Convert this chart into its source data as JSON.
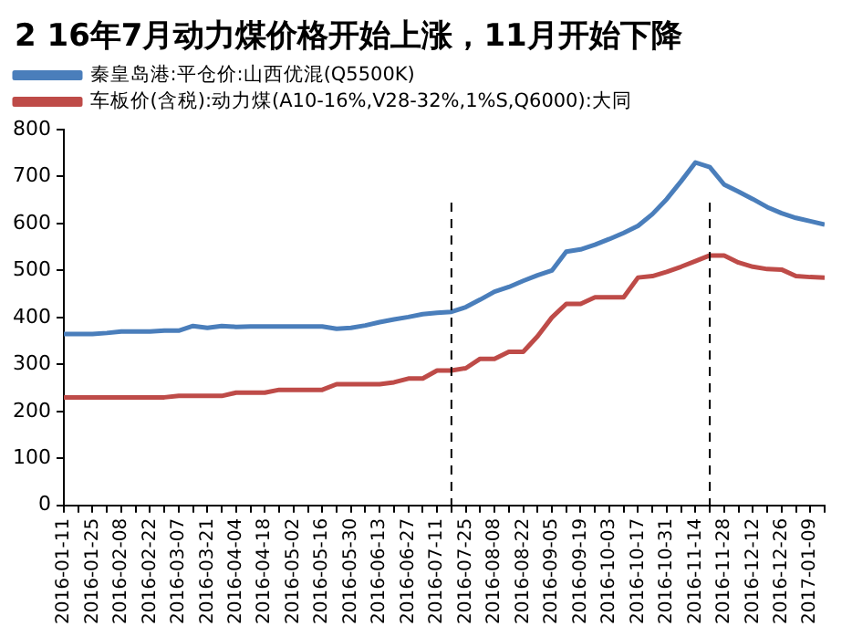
{
  "chart_data": {
    "type": "line",
    "title": "2 16年7月动力煤价格开始上涨，11月开始下降",
    "x": [
      "2016-01-11",
      "2016-01-18",
      "2016-01-25",
      "2016-02-01",
      "2016-02-08",
      "2016-02-15",
      "2016-02-22",
      "2016-02-29",
      "2016-03-07",
      "2016-03-14",
      "2016-03-21",
      "2016-03-28",
      "2016-04-04",
      "2016-04-11",
      "2016-04-18",
      "2016-04-25",
      "2016-05-02",
      "2016-05-09",
      "2016-05-16",
      "2016-05-23",
      "2016-05-30",
      "2016-06-06",
      "2016-06-13",
      "2016-06-20",
      "2016-06-27",
      "2016-07-04",
      "2016-07-11",
      "2016-07-18",
      "2016-07-25",
      "2016-08-01",
      "2016-08-08",
      "2016-08-15",
      "2016-08-22",
      "2016-08-29",
      "2016-09-05",
      "2016-09-12",
      "2016-09-19",
      "2016-09-26",
      "2016-10-03",
      "2016-10-10",
      "2016-10-17",
      "2016-10-24",
      "2016-10-31",
      "2016-11-07",
      "2016-11-14",
      "2016-11-21",
      "2016-11-28",
      "2016-12-05",
      "2016-12-12",
      "2016-12-19",
      "2016-12-26",
      "2017-01-02",
      "2017-01-09",
      "2017-01-16"
    ],
    "series": [
      {
        "name": "秦皇岛港:平仓价:山西优混(Q5500K)",
        "color": "#4a7ebb",
        "values": [
          365,
          365,
          365,
          367,
          370,
          370,
          370,
          372,
          372,
          382,
          378,
          382,
          380,
          381,
          381,
          381,
          381,
          381,
          381,
          376,
          378,
          383,
          390,
          396,
          401,
          407,
          410,
          412,
          422,
          438,
          455,
          465,
          478,
          490,
          500,
          540,
          545,
          555,
          567,
          580,
          595,
          620,
          652,
          690,
          730,
          720,
          683,
          668,
          652,
          635,
          622,
          612,
          605,
          598
        ]
      },
      {
        "name": "车板价(含税):动力煤(A10-16%,V28-32%,1%S,Q6000):大同",
        "color": "#be4b48",
        "values": [
          230,
          230,
          230,
          230,
          230,
          230,
          230,
          230,
          233,
          233,
          233,
          233,
          240,
          240,
          240,
          246,
          246,
          246,
          246,
          258,
          258,
          258,
          258,
          262,
          270,
          270,
          287,
          287,
          292,
          312,
          312,
          327,
          327,
          360,
          400,
          429,
          429,
          443,
          443,
          443,
          485,
          488,
          497,
          508,
          520,
          532,
          532,
          517,
          508,
          503,
          502,
          488,
          486,
          485
        ]
      }
    ],
    "xlim": [
      "2016-01-11",
      "2017-01-16"
    ],
    "xticks": [
      "2016-01-11",
      {
        "value": "2016-01-18",
        "label": null
      },
      "2016-01-25",
      {
        "value": "2016-02-01",
        "label": null
      },
      "2016-02-08",
      {
        "value": "2016-02-15",
        "label": null
      },
      "2016-02-22",
      {
        "value": "2016-02-29",
        "label": null
      },
      "2016-03-07",
      {
        "value": "2016-03-14",
        "label": null
      },
      "2016-03-21",
      {
        "value": "2016-03-28",
        "label": null
      },
      "2016-04-04",
      {
        "value": "2016-04-11",
        "label": null
      },
      "2016-04-18",
      {
        "value": "2016-04-25",
        "label": null
      },
      "2016-05-02",
      {
        "value": "2016-05-09",
        "label": null
      },
      "2016-05-16",
      {
        "value": "2016-05-23",
        "label": null
      },
      "2016-05-30",
      {
        "value": "2016-06-06",
        "label": null
      },
      "2016-06-13",
      {
        "value": "2016-06-20",
        "label": null
      },
      "2016-06-27",
      {
        "value": "2016-07-04",
        "label": null
      },
      "2016-07-11",
      {
        "value": "2016-07-18",
        "label": null
      },
      "2016-07-25",
      {
        "value": "2016-08-01",
        "label": null
      },
      "2016-08-08",
      {
        "value": "2016-08-15",
        "label": null
      },
      "2016-08-22",
      {
        "value": "2016-08-29",
        "label": null
      },
      "2016-09-05",
      {
        "value": "2016-09-12",
        "label": null
      },
      "2016-09-19",
      {
        "value": "2016-09-26",
        "label": null
      },
      "2016-10-03",
      {
        "value": "2016-10-10",
        "label": null
      },
      "2016-10-17",
      {
        "value": "2016-10-24",
        "label": null
      },
      "2016-10-31",
      {
        "value": "2016-11-07",
        "label": null
      },
      "2016-11-14",
      {
        "value": "2016-11-21",
        "label": null
      },
      "2016-11-28",
      {
        "value": "2016-12-05",
        "label": null
      },
      "2016-12-12",
      {
        "value": "2016-12-19",
        "label": null
      },
      "2016-12-26",
      {
        "value": "2017-01-02",
        "label": null
      },
      "2017-01-09",
      {
        "value": "2017-01-16",
        "label": null
      }
    ],
    "ylim": [
      0,
      800
    ],
    "yticks": [
      0,
      100,
      200,
      300,
      400,
      500,
      600,
      700,
      800
    ],
    "ref_lines": [
      {
        "axis": "x",
        "value": "2016-07-18",
        "color": "#000000",
        "line_style": "dashed"
      },
      {
        "axis": "x",
        "value": "2016-11-21",
        "color": "#000000",
        "line_style": "dashed"
      }
    ],
    "grid": false,
    "legend": "top left",
    "marker": "none",
    "line_style": "solid"
  }
}
